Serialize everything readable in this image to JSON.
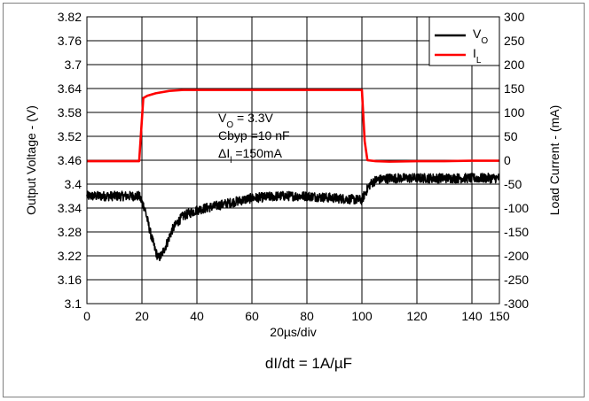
{
  "chart_data": {
    "type": "line",
    "xlabel": "20µs/div",
    "ylabel_left": "Output Voltage - (V)",
    "ylabel_right": "Load Current - (mA)",
    "xlim": [
      0,
      150
    ],
    "ylim_left": [
      3.1,
      3.82
    ],
    "ylim_right": [
      -300,
      300
    ],
    "x_ticks": [
      "0",
      "20",
      "40",
      "60",
      "80",
      "100",
      "120",
      "140",
      "150"
    ],
    "x_tick_values": [
      0,
      20,
      40,
      60,
      80,
      100,
      120,
      140,
      150
    ],
    "y_left_ticks": [
      "3.82",
      "3.76",
      "3.7",
      "3.64",
      "3.58",
      "3.52",
      "3.46",
      "3.4",
      "3.34",
      "3.28",
      "3.22",
      "3.16",
      "3.1"
    ],
    "y_left_tick_values": [
      3.82,
      3.76,
      3.7,
      3.64,
      3.58,
      3.52,
      3.46,
      3.4,
      3.34,
      3.28,
      3.22,
      3.16,
      3.1
    ],
    "y_right_ticks": [
      "300",
      "250",
      "200",
      "150",
      "100",
      "50",
      "0",
      "-50",
      "-100",
      "-150",
      "-200",
      "-250",
      "-300"
    ],
    "y_right_tick_values": [
      300,
      250,
      200,
      150,
      100,
      50,
      0,
      -50,
      -100,
      -150,
      -200,
      -250,
      -300
    ],
    "grid": true,
    "legend_position": "top-right",
    "series": [
      {
        "name": "VO",
        "axis": "left",
        "color": "#000000",
        "noise_amplitude": 0.012,
        "x": [
          0,
          10,
          19,
          21,
          23,
          25,
          26,
          27,
          29,
          31,
          33,
          35,
          40,
          50,
          60,
          70,
          80,
          90,
          100,
          101,
          103,
          105,
          110,
          120,
          130,
          140,
          150
        ],
        "y": [
          3.37,
          3.37,
          3.37,
          3.34,
          3.28,
          3.23,
          3.215,
          3.22,
          3.25,
          3.285,
          3.305,
          3.32,
          3.335,
          3.35,
          3.365,
          3.37,
          3.37,
          3.365,
          3.36,
          3.375,
          3.4,
          3.41,
          3.415,
          3.415,
          3.415,
          3.415,
          3.415
        ]
      },
      {
        "name": "IL",
        "axis": "right",
        "color": "#ff0000",
        "x": [
          0,
          19,
          20.5,
          22,
          25,
          30,
          35,
          40,
          50,
          60,
          70,
          80,
          90,
          100,
          101,
          102,
          105,
          110,
          120,
          130,
          140,
          150
        ],
        "y": [
          -2,
          -2,
          130,
          135,
          140,
          145,
          147,
          147,
          147,
          147,
          147,
          147,
          147,
          147,
          40,
          0,
          -2,
          -3,
          -2,
          -2,
          -1,
          -1
        ]
      }
    ],
    "legend": [
      {
        "label": "VO",
        "base": "V",
        "sub": "O",
        "color": "#000000"
      },
      {
        "label": "IL",
        "base": "I",
        "sub": "L",
        "color": "#ff0000"
      }
    ],
    "annotations": {
      "line1": {
        "base": "V",
        "sub": "O",
        "rest": " = 3.3V"
      },
      "line2": {
        "text": "Cbyp =10 nF"
      },
      "line3": {
        "base": "ΔI",
        "sub": "l",
        "rest": " =150mA"
      }
    },
    "caption": "dI/dt = 1A/µF"
  }
}
